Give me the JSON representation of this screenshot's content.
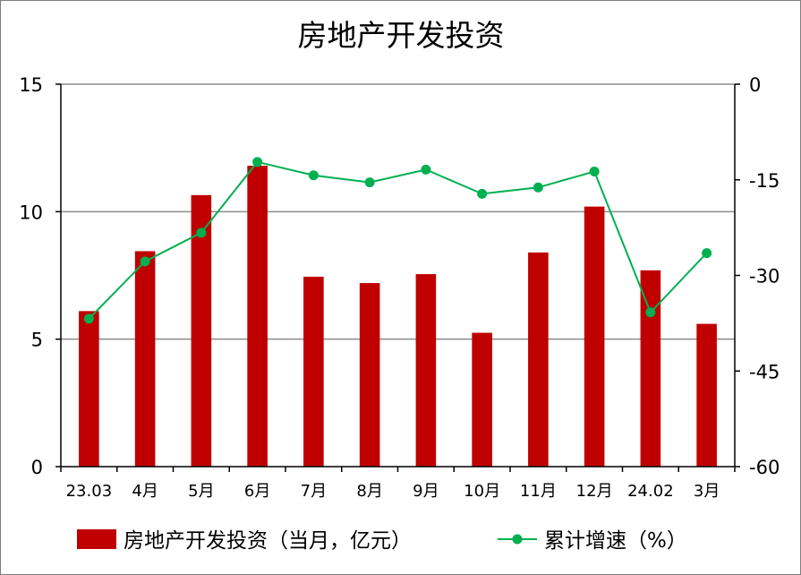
{
  "chart_data": {
    "type": "bar",
    "title": "房地产开发投资",
    "categories": [
      "23.03",
      "4月",
      "5月",
      "6月",
      "7月",
      "8月",
      "9月",
      "10月",
      "11月",
      "12月",
      "24.02",
      "3月"
    ],
    "series": [
      {
        "name": "房地产开发投资（当月，亿元）",
        "type": "bar",
        "axis": "left",
        "color": "#c00000",
        "values": [
          6.1,
          8.45,
          10.65,
          11.8,
          7.45,
          7.2,
          7.55,
          5.25,
          8.4,
          10.2,
          7.7,
          5.6
        ]
      },
      {
        "name": "累计增速（%）",
        "type": "line",
        "axis": "right",
        "color": "#00b050",
        "values": [
          -36.8,
          -27.8,
          -23.3,
          -12.2,
          -14.3,
          -15.4,
          -13.4,
          -17.2,
          -16.2,
          -13.7,
          -35.8,
          -26.5
        ]
      }
    ],
    "y_left": {
      "min": 0,
      "max": 15,
      "ticks": [
        0,
        5,
        10,
        15
      ]
    },
    "y_right": {
      "min": -60,
      "max": 0,
      "ticks": [
        -60,
        -45,
        -30,
        -15,
        0
      ]
    },
    "grid": true,
    "legend_position": "bottom"
  }
}
